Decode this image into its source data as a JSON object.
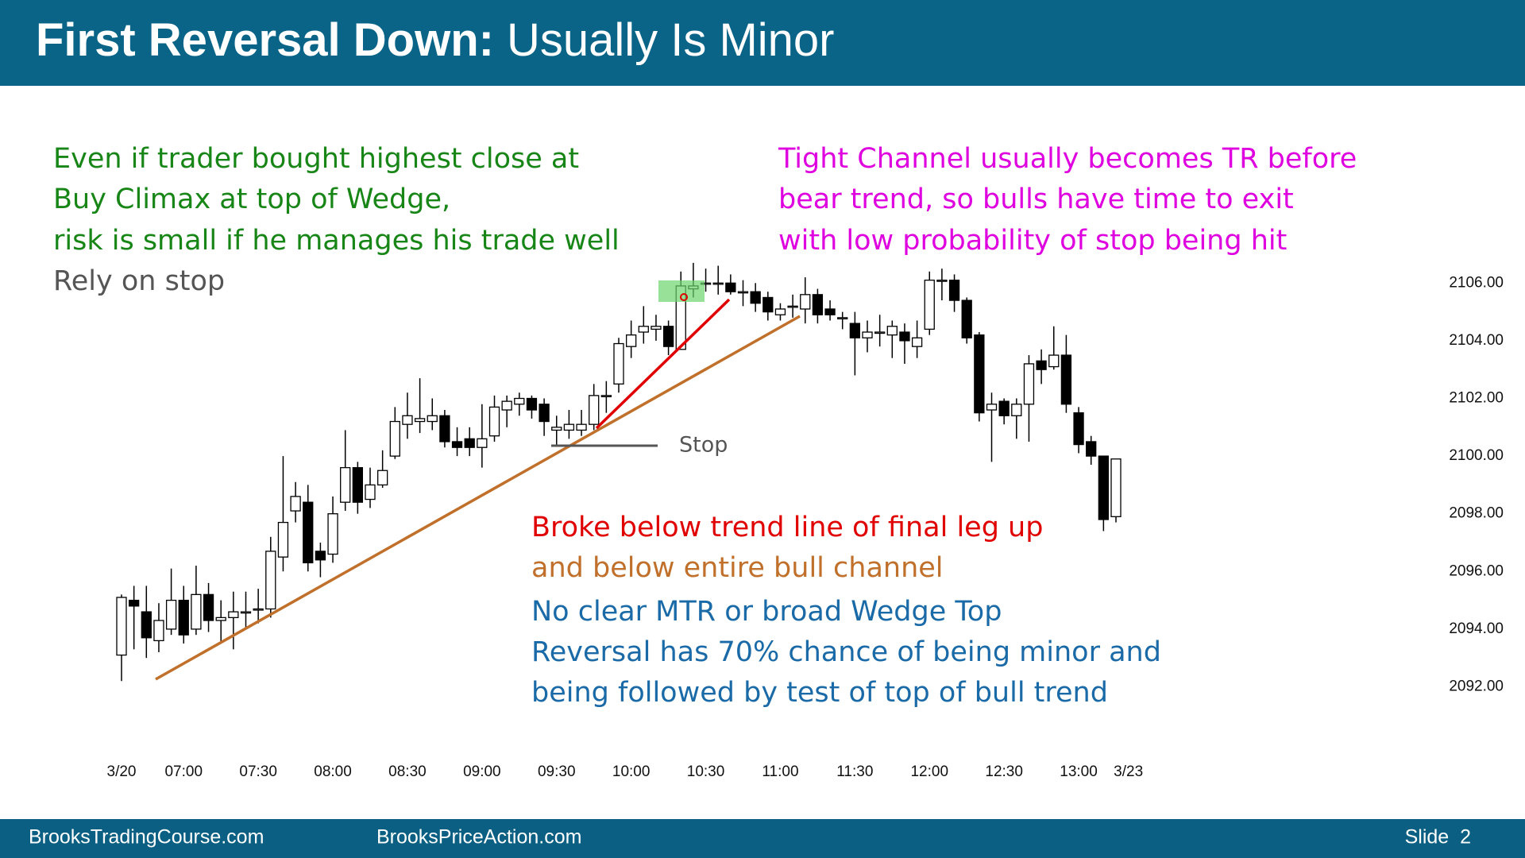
{
  "header": {
    "title_bold": "First Reversal Down:",
    "title_rest": "Usually Is Minor"
  },
  "notes": [
    "Even if trader bought highest close at",
    "Buy Climax at top of Wedge,",
    "risk is small if he manages his trade well",
    "Rely on stop",
    "Tight Channel usually becomes TR before",
    "bear trend, so bulls have time to exit",
    "with low probability of stop being hit",
    "Stop",
    "Broke below trend line of final leg up",
    "and below entire bull channel",
    "No clear MTR or broad Wedge Top",
    "Reversal has 70% chance of being minor and",
    "being followed by test of top of bull trend"
  ],
  "footer": {
    "left": "BrooksTradingCourse.com",
    "center": "BrooksPriceAction.com",
    "slide": "Slide  2"
  },
  "chart_data": {
    "type": "candlestick",
    "up_color": "#ffffff",
    "down_color": "#000000",
    "categories": [
      "3/20",
      null,
      null,
      null,
      null,
      "07:00",
      null,
      null,
      null,
      null,
      null,
      "07:30",
      null,
      null,
      null,
      null,
      null,
      "08:00",
      null,
      null,
      null,
      null,
      null,
      "08:30",
      null,
      null,
      null,
      null,
      null,
      "09:00",
      null,
      null,
      null,
      null,
      null,
      "09:30",
      null,
      null,
      null,
      null,
      null,
      "10:00",
      null,
      null,
      null,
      null,
      null,
      "10:30",
      null,
      null,
      null,
      null,
      null,
      "11:00",
      null,
      null,
      null,
      null,
      null,
      "11:30",
      null,
      null,
      null,
      null,
      null,
      "12:00",
      null,
      null,
      null,
      null,
      null,
      "12:30",
      null,
      null,
      null,
      null,
      null,
      "13:00",
      null,
      null,
      null,
      "3/23"
    ],
    "open": [
      2093.1,
      2095,
      2094.6,
      2093.6,
      2094,
      2095,
      2094,
      2095.2,
      2094.3,
      2094.4,
      2094.6,
      2094.7,
      2094.7,
      2096.5,
      2098.1,
      2098.4,
      2096.7,
      2096.6,
      2098.4,
      2099.6,
      2098.5,
      2099,
      2100,
      2101.1,
      2101.2,
      2101.2,
      2101.4,
      2100.5,
      2100.6,
      2100.3,
      2100.7,
      2101.6,
      2101.8,
      2102,
      2101.8,
      2100.9,
      2100.9,
      2100.9,
      2101.1,
      2102.1,
      2102.5,
      2103.8,
      2104.3,
      2104.4,
      2104.5,
      2103.7,
      2105.8,
      2106,
      2106,
      2106,
      2105.7,
      2105.7,
      2105.5,
      2104.9,
      2105.2,
      2105.1,
      2105.6,
      2105.1,
      2104.8,
      2104.6,
      2104.1,
      2104.3,
      2104.2,
      2104.3,
      2103.8,
      2104.4,
      2106.1,
      2106.1,
      2105.4,
      2104.2,
      2101.6,
      2101.9,
      2101.4,
      2101.8,
      2103.3,
      2103.1,
      2103.5,
      2101.5,
      2100.5,
      2100,
      2097.9,
      null
    ],
    "high": [
      2095.2,
      2095.5,
      2095.5,
      2094.9,
      2096.1,
      2095.5,
      2096.2,
      2095.6,
      2095,
      2095.3,
      2095.3,
      2095.4,
      2097.2,
      2100,
      2099.1,
      2099,
      2097,
      2098.6,
      2100.9,
      2099.8,
      2099.6,
      2100.2,
      2101.7,
      2102.2,
      2102.7,
      2102,
      2101.6,
      2101,
      2101,
      2101.8,
      2102.1,
      2102.1,
      2102.2,
      2102.1,
      2102,
      2101.4,
      2101.6,
      2101.6,
      2102.5,
      2102.6,
      2104.1,
      2104.7,
      2105.2,
      2104.9,
      2104.7,
      2106.4,
      2106.7,
      2106.5,
      2106.6,
      2106.3,
      2106.1,
      2106,
      2105.7,
      2105.3,
      2105.6,
      2106.2,
      2105.8,
      2105.4,
      2105,
      2105,
      2104.7,
      2104.9,
      2104.7,
      2104.6,
      2104.7,
      2106.4,
      2106.5,
      2106.3,
      2105.5,
      2104.3,
      2102.2,
      2102,
      2102,
      2103.5,
      2103.7,
      2104.5,
      2104.2,
      2101.7,
      2100.7,
      2100,
      2099.9,
      null
    ],
    "low": [
      2092.2,
      2093.3,
      2093,
      2093.2,
      2093.8,
      2093.5,
      2093.8,
      2093.9,
      2093.5,
      2093.3,
      2094,
      2094.2,
      2094.4,
      2096,
      2097.7,
      2096,
      2095.8,
      2096.3,
      2098.1,
      2098,
      2098.2,
      2098.9,
      2099.9,
      2100.6,
      2100.8,
      2100.9,
      2100.3,
      2100,
      2100,
      2099.6,
      2100.5,
      2101,
      2101.4,
      2101.3,
      2100.7,
      2100.4,
      2100.6,
      2100.7,
      2100.9,
      2101.5,
      2102.2,
      2103.4,
      2103.9,
      2104,
      2103.5,
      2103.7,
      2105.5,
      2105.7,
      2105.6,
      2105.6,
      2105.2,
      2105,
      2104.7,
      2104.7,
      2104.8,
      2104.6,
      2104.6,
      2104.7,
      2104.4,
      2102.8,
      2103.6,
      2103.8,
      2103.4,
      2103.2,
      2103.4,
      2104.2,
      2105.4,
      2105,
      2103.9,
      2101.2,
      2099.8,
      2101.1,
      2100.6,
      2100.5,
      2102.5,
      2103,
      2101.5,
      2100.1,
      2099.7,
      2097.4,
      2097.7,
      null
    ],
    "close": [
      2095.1,
      2094.8,
      2093.7,
      2094.3,
      2095,
      2093.8,
      2095.2,
      2094.3,
      2094.4,
      2094.6,
      2094.6,
      2094.7,
      2096.7,
      2097.7,
      2098.6,
      2096.3,
      2096.4,
      2098,
      2099.6,
      2098.4,
      2099,
      2099.5,
      2101.2,
      2101.4,
      2101.3,
      2101.4,
      2100.5,
      2100.3,
      2100.3,
      2100.6,
      2101.7,
      2101.9,
      2102,
      2101.6,
      2101.2,
      2101,
      2101.1,
      2101.1,
      2102.1,
      2102.1,
      2103.9,
      2104.2,
      2104.5,
      2104.5,
      2103.8,
      2105.9,
      2105.9,
      2106,
      2106,
      2105.7,
      2105.7,
      2105.3,
      2105,
      2105.1,
      2105.2,
      2105.6,
      2104.9,
      2104.9,
      2104.8,
      2104.1,
      2104.3,
      2104.3,
      2104.5,
      2104,
      2104.1,
      2106.1,
      2106.1,
      2105.4,
      2104.1,
      2101.5,
      2101.8,
      2101.4,
      2101.8,
      2103.2,
      2103,
      2103.5,
      2101.8,
      2100.4,
      2100,
      2097.8,
      2099.9,
      null
    ],
    "ylim": [
      2091,
      2107
    ],
    "yticks": [
      {
        "value": 2092,
        "label": "2092.00"
      },
      {
        "value": 2094,
        "label": "2094.00"
      },
      {
        "value": 2096,
        "label": "2096.00"
      },
      {
        "value": 2098,
        "label": "2098.00"
      },
      {
        "value": 2100,
        "label": "2100.00"
      },
      {
        "value": 2102,
        "label": "2102.00"
      },
      {
        "value": 2104,
        "label": "2104.00"
      },
      {
        "value": 2106,
        "label": "2106.00"
      }
    ]
  }
}
